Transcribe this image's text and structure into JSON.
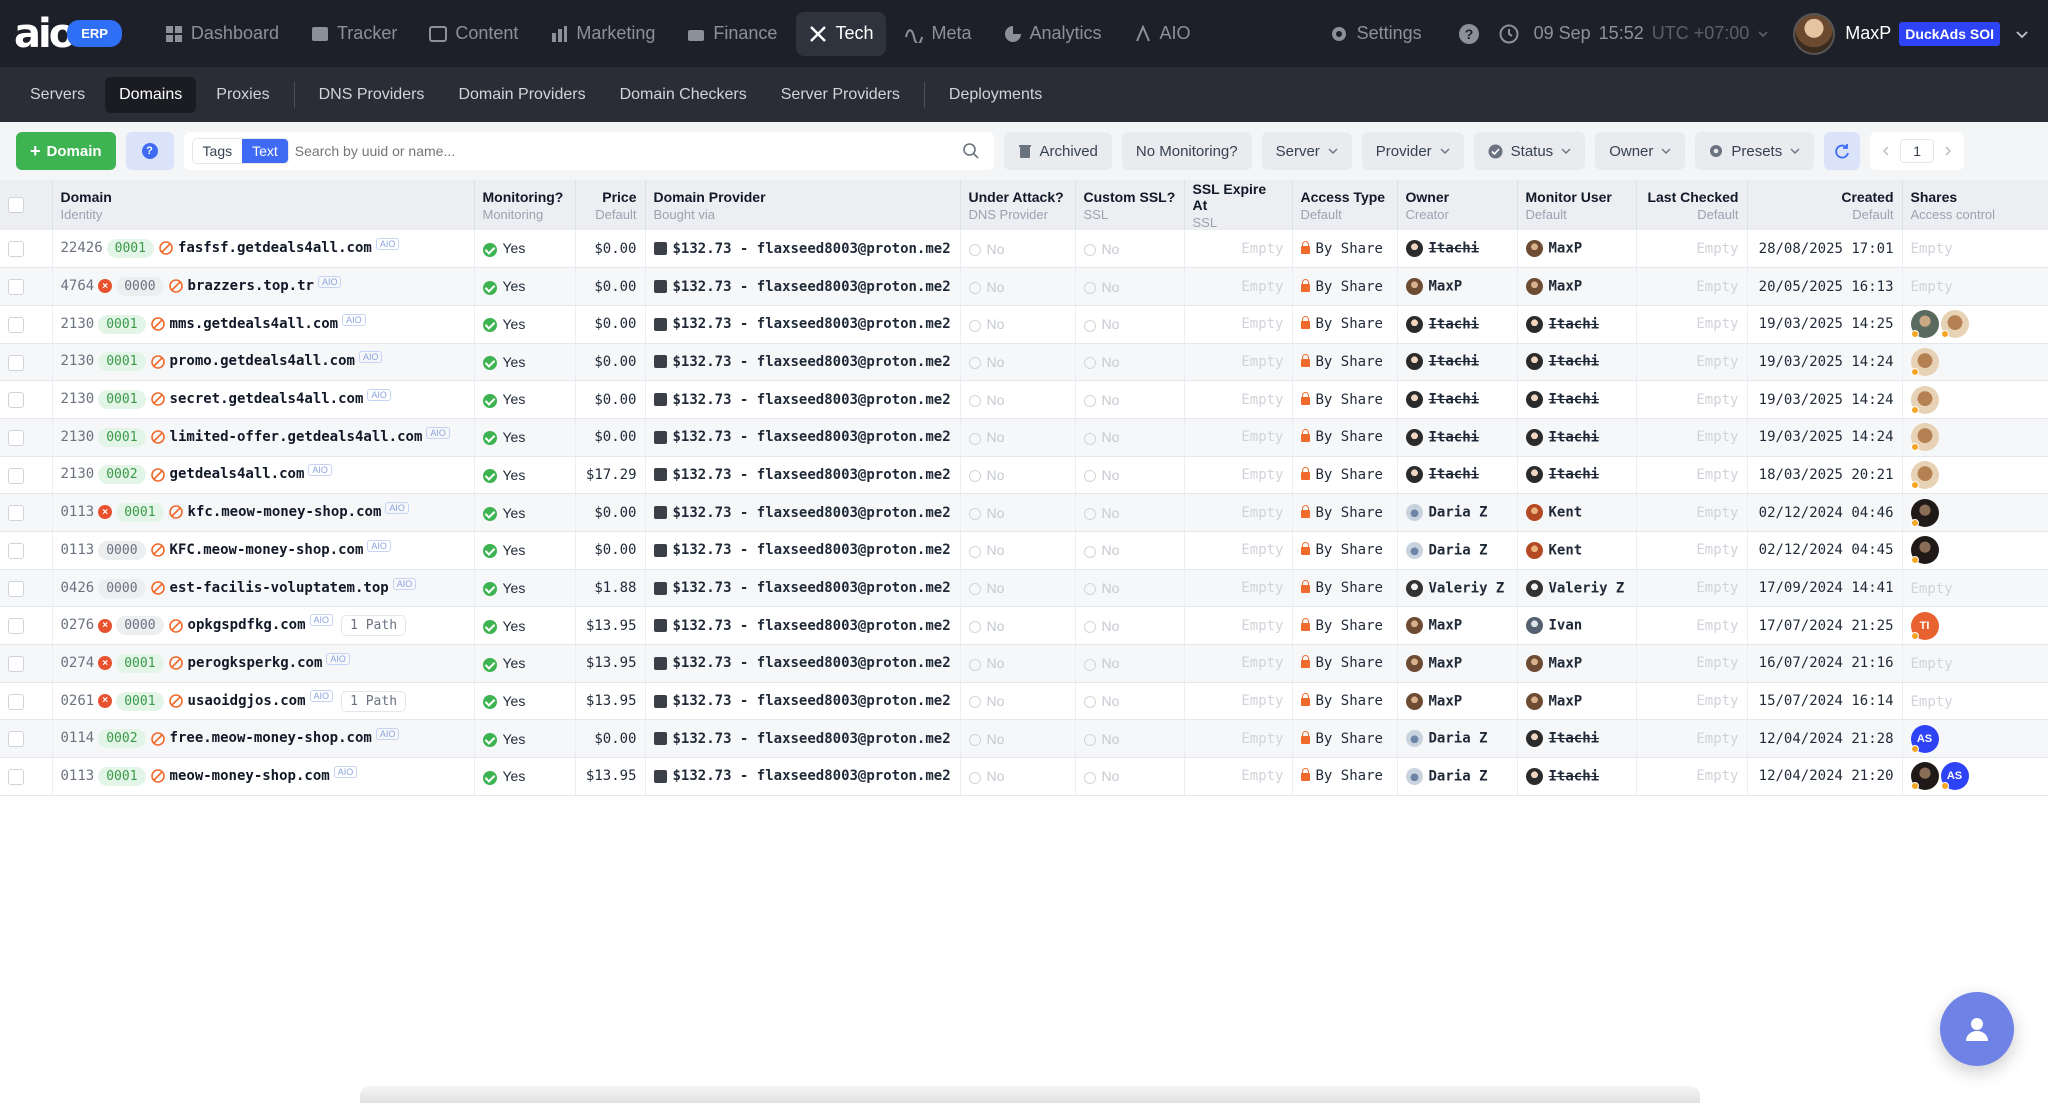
{
  "app": {
    "logo": "aio",
    "badge": "ERP"
  },
  "nav": [
    {
      "label": "Dashboard",
      "icon": "dashboard-icon",
      "active": false
    },
    {
      "label": "Tracker",
      "icon": "tracker-icon",
      "active": false
    },
    {
      "label": "Content",
      "icon": "content-icon",
      "active": false
    },
    {
      "label": "Marketing",
      "icon": "marketing-icon",
      "active": false
    },
    {
      "label": "Finance",
      "icon": "finance-icon",
      "active": false
    },
    {
      "label": "Tech",
      "icon": "tech-icon",
      "active": true
    },
    {
      "label": "Meta",
      "icon": "meta-icon",
      "active": false
    },
    {
      "label": "Analytics",
      "icon": "analytics-icon",
      "active": false
    },
    {
      "label": "AIO",
      "icon": "aio-icon",
      "active": false
    }
  ],
  "topright": {
    "settings": "Settings",
    "date": "09 Sep",
    "time": "15:52",
    "tz": "UTC +07:00",
    "user": "MaxP",
    "workspace": "DuckAds SOI"
  },
  "subnav": [
    {
      "label": "Servers",
      "active": false
    },
    {
      "label": "Domains",
      "active": true
    },
    {
      "label": "Proxies",
      "active": false
    },
    {
      "label": "DNS Providers",
      "active": false
    },
    {
      "label": "Domain Providers",
      "active": false
    },
    {
      "label": "Domain Checkers",
      "active": false
    },
    {
      "label": "Server Providers",
      "active": false
    },
    {
      "label": "Deployments",
      "active": false
    }
  ],
  "toolbar": {
    "add_label": "Domain",
    "tags_label": "Tags",
    "text_label": "Text",
    "search_placeholder": "Search by uuid or name...",
    "archived": "Archived",
    "no_monitoring": "No Monitoring?",
    "server": "Server",
    "provider": "Provider",
    "status": "Status",
    "owner": "Owner",
    "presets": "Presets",
    "page": "1"
  },
  "columns": [
    {
      "title": "Domain",
      "sub": "Identity"
    },
    {
      "title": "Monitoring?",
      "sub": "Monitoring"
    },
    {
      "title": "Price",
      "sub": "Default"
    },
    {
      "title": "Domain Provider",
      "sub": "Bought via"
    },
    {
      "title": "Under Attack?",
      "sub": "DNS Provider"
    },
    {
      "title": "Custom SSL?",
      "sub": "SSL"
    },
    {
      "title": "SSL Expire At",
      "sub": "SSL"
    },
    {
      "title": "Access Type",
      "sub": "Default"
    },
    {
      "title": "Owner",
      "sub": "Creator"
    },
    {
      "title": "Monitor User",
      "sub": "Default"
    },
    {
      "title": "Last Checked",
      "sub": "Default"
    },
    {
      "title": "Created",
      "sub": "Default"
    },
    {
      "title": "Shares",
      "sub": "Access control"
    }
  ],
  "rows": [
    {
      "id": "22426",
      "err": false,
      "code": "0001",
      "code_color": "green",
      "domain": "fasfsf.getdeals4all.com",
      "tag": "AIO",
      "path": "",
      "monitoring": "Yes",
      "price": "$0.00",
      "provider": "$132.73 - flaxseed8003@proton.me2",
      "attack": "No",
      "ssl": "No",
      "ssl_exp": "Empty",
      "access": "By Share",
      "owner": "Itachi",
      "owner_strike": true,
      "owner_av": "itachi",
      "monitor": "MaxP",
      "monitor_strike": false,
      "monitor_av": "maxp",
      "last": "Empty",
      "created": "28/08/2025 17:01",
      "shares": [],
      "shares_empty": "Empty"
    },
    {
      "id": "4764",
      "err": true,
      "code": "0000",
      "code_color": "grey",
      "domain": "brazzers.top.tr",
      "tag": "AIO",
      "path": "",
      "monitoring": "Yes",
      "price": "$0.00",
      "provider": "$132.73 - flaxseed8003@proton.me2",
      "attack": "No",
      "ssl": "No",
      "ssl_exp": "Empty",
      "access": "By Share",
      "owner": "MaxP",
      "owner_strike": false,
      "owner_av": "maxp",
      "monitor": "MaxP",
      "monitor_strike": false,
      "monitor_av": "maxp",
      "last": "Empty",
      "created": "20/05/2025 16:13",
      "shares": [],
      "shares_empty": "Empty"
    },
    {
      "id": "2130",
      "err": false,
      "code": "0001",
      "code_color": "green",
      "domain": "mms.getdeals4all.com",
      "tag": "AIO",
      "path": "",
      "monitoring": "Yes",
      "price": "$0.00",
      "provider": "$132.73 - flaxseed8003@proton.me2",
      "attack": "No",
      "ssl": "No",
      "ssl_exp": "Empty",
      "access": "By Share",
      "owner": "Itachi",
      "owner_strike": true,
      "owner_av": "itachi",
      "monitor": "Itachi",
      "monitor_strike": true,
      "monitor_av": "itachi",
      "last": "Empty",
      "created": "19/03/2025 14:25",
      "shares": [
        {
          "av": "grey",
          "t": ""
        },
        {
          "av": "cat",
          "t": ""
        }
      ],
      "shares_empty": ""
    },
    {
      "id": "2130",
      "err": false,
      "code": "0001",
      "code_color": "green",
      "domain": "promo.getdeals4all.com",
      "tag": "AIO",
      "path": "",
      "monitoring": "Yes",
      "price": "$0.00",
      "provider": "$132.73 - flaxseed8003@proton.me2",
      "attack": "No",
      "ssl": "No",
      "ssl_exp": "Empty",
      "access": "By Share",
      "owner": "Itachi",
      "owner_strike": true,
      "owner_av": "itachi",
      "monitor": "Itachi",
      "monitor_strike": true,
      "monitor_av": "itachi",
      "last": "Empty",
      "created": "19/03/2025 14:24",
      "shares": [
        {
          "av": "cat",
          "t": ""
        }
      ],
      "shares_empty": ""
    },
    {
      "id": "2130",
      "err": false,
      "code": "0001",
      "code_color": "green",
      "domain": "secret.getdeals4all.com",
      "tag": "AIO",
      "path": "",
      "monitoring": "Yes",
      "price": "$0.00",
      "provider": "$132.73 - flaxseed8003@proton.me2",
      "attack": "No",
      "ssl": "No",
      "ssl_exp": "Empty",
      "access": "By Share",
      "owner": "Itachi",
      "owner_strike": true,
      "owner_av": "itachi",
      "monitor": "Itachi",
      "monitor_strike": true,
      "monitor_av": "itachi",
      "last": "Empty",
      "created": "19/03/2025 14:24",
      "shares": [
        {
          "av": "cat",
          "t": ""
        }
      ],
      "shares_empty": ""
    },
    {
      "id": "2130",
      "err": false,
      "code": "0001",
      "code_color": "green",
      "domain": "limited-offer.getdeals4all.com",
      "tag": "AIO",
      "path": "",
      "monitoring": "Yes",
      "price": "$0.00",
      "provider": "$132.73 - flaxseed8003@proton.me2",
      "attack": "No",
      "ssl": "No",
      "ssl_exp": "Empty",
      "access": "By Share",
      "owner": "Itachi",
      "owner_strike": true,
      "owner_av": "itachi",
      "monitor": "Itachi",
      "monitor_strike": true,
      "monitor_av": "itachi",
      "last": "Empty",
      "created": "19/03/2025 14:24",
      "shares": [
        {
          "av": "cat",
          "t": ""
        }
      ],
      "shares_empty": ""
    },
    {
      "id": "2130",
      "err": false,
      "code": "0002",
      "code_color": "green",
      "domain": "getdeals4all.com",
      "tag": "AIO",
      "path": "",
      "monitoring": "Yes",
      "price": "$17.29",
      "provider": "$132.73 - flaxseed8003@proton.me2",
      "attack": "No",
      "ssl": "No",
      "ssl_exp": "Empty",
      "access": "By Share",
      "owner": "Itachi",
      "owner_strike": true,
      "owner_av": "itachi",
      "monitor": "Itachi",
      "monitor_strike": true,
      "monitor_av": "itachi",
      "last": "Empty",
      "created": "18/03/2025 20:21",
      "shares": [
        {
          "av": "cat",
          "t": ""
        }
      ],
      "shares_empty": ""
    },
    {
      "id": "0113",
      "err": true,
      "code": "0001",
      "code_color": "green",
      "domain": "kfc.meow-money-shop.com",
      "tag": "AIO",
      "path": "",
      "monitoring": "Yes",
      "price": "$0.00",
      "provider": "$132.73 - flaxseed8003@proton.me2",
      "attack": "No",
      "ssl": "No",
      "ssl_exp": "Empty",
      "access": "By Share",
      "owner": "Daria Z",
      "owner_strike": false,
      "owner_av": "daria",
      "monitor": "Kent",
      "monitor_strike": false,
      "monitor_av": "kent",
      "last": "Empty",
      "created": "02/12/2024 04:46",
      "shares": [
        {
          "av": "dark",
          "t": ""
        }
      ],
      "shares_empty": ""
    },
    {
      "id": "0113",
      "err": false,
      "code": "0000",
      "code_color": "grey",
      "domain": "KFC.meow-money-shop.com",
      "tag": "AIO",
      "path": "",
      "monitoring": "Yes",
      "price": "$0.00",
      "provider": "$132.73 - flaxseed8003@proton.me2",
      "attack": "No",
      "ssl": "No",
      "ssl_exp": "Empty",
      "access": "By Share",
      "owner": "Daria Z",
      "owner_strike": false,
      "owner_av": "daria",
      "monitor": "Kent",
      "monitor_strike": false,
      "monitor_av": "kent",
      "last": "Empty",
      "created": "02/12/2024 04:45",
      "shares": [
        {
          "av": "dark",
          "t": ""
        }
      ],
      "shares_empty": ""
    },
    {
      "id": "0426",
      "err": false,
      "code": "0000",
      "code_color": "grey",
      "domain": "est-facilis-voluptatem.top",
      "tag": "AIO",
      "path": "",
      "monitoring": "Yes",
      "price": "$1.88",
      "provider": "$132.73 - flaxseed8003@proton.me2",
      "attack": "No",
      "ssl": "No",
      "ssl_exp": "Empty",
      "access": "By Share",
      "owner": "Valeriy Z",
      "owner_strike": false,
      "owner_av": "valeriy",
      "monitor": "Valeriy Z",
      "monitor_strike": false,
      "monitor_av": "valeriy",
      "last": "Empty",
      "created": "17/09/2024 14:41",
      "shares": [],
      "shares_empty": "Empty"
    },
    {
      "id": "0276",
      "err": true,
      "code": "0000",
      "code_color": "grey",
      "domain": "opkgspdfkg.com",
      "tag": "AIO",
      "path": "1 Path",
      "monitoring": "Yes",
      "price": "$13.95",
      "provider": "$132.73 - flaxseed8003@proton.me2",
      "attack": "No",
      "ssl": "No",
      "ssl_exp": "Empty",
      "access": "By Share",
      "owner": "MaxP",
      "owner_strike": false,
      "owner_av": "maxp",
      "monitor": "Ivan",
      "monitor_strike": false,
      "monitor_av": "ivan",
      "last": "Empty",
      "created": "17/07/2024 21:25",
      "shares": [
        {
          "av": "ti",
          "t": "TI"
        }
      ],
      "shares_empty": ""
    },
    {
      "id": "0274",
      "err": true,
      "code": "0001",
      "code_color": "green",
      "domain": "perogksperkg.com",
      "tag": "AIO",
      "path": "",
      "monitoring": "Yes",
      "price": "$13.95",
      "provider": "$132.73 - flaxseed8003@proton.me2",
      "attack": "No",
      "ssl": "No",
      "ssl_exp": "Empty",
      "access": "By Share",
      "owner": "MaxP",
      "owner_strike": false,
      "owner_av": "maxp",
      "monitor": "MaxP",
      "monitor_strike": false,
      "monitor_av": "maxp",
      "last": "Empty",
      "created": "16/07/2024 21:16",
      "shares": [],
      "shares_empty": "Empty"
    },
    {
      "id": "0261",
      "err": true,
      "code": "0001",
      "code_color": "green",
      "domain": "usaoidgjos.com",
      "tag": "AIO",
      "path": "1 Path",
      "monitoring": "Yes",
      "price": "$13.95",
      "provider": "$132.73 - flaxseed8003@proton.me2",
      "attack": "No",
      "ssl": "No",
      "ssl_exp": "Empty",
      "access": "By Share",
      "owner": "MaxP",
      "owner_strike": false,
      "owner_av": "maxp",
      "monitor": "MaxP",
      "monitor_strike": false,
      "monitor_av": "maxp",
      "last": "Empty",
      "created": "15/07/2024 16:14",
      "shares": [],
      "shares_empty": "Empty"
    },
    {
      "id": "0114",
      "err": false,
      "code": "0002",
      "code_color": "green",
      "domain": "free.meow-money-shop.com",
      "tag": "AIO",
      "path": "",
      "monitoring": "Yes",
      "price": "$0.00",
      "provider": "$132.73 - flaxseed8003@proton.me2",
      "attack": "No",
      "ssl": "No",
      "ssl_exp": "Empty",
      "access": "By Share",
      "owner": "Daria Z",
      "owner_strike": false,
      "owner_av": "daria",
      "monitor": "Itachi",
      "monitor_strike": true,
      "monitor_av": "itachi",
      "last": "Empty",
      "created": "12/04/2024 21:28",
      "shares": [
        {
          "av": "as",
          "t": "AS"
        }
      ],
      "shares_empty": ""
    },
    {
      "id": "0113",
      "err": false,
      "code": "0001",
      "code_color": "green",
      "domain": "meow-money-shop.com",
      "tag": "AIO",
      "path": "",
      "monitoring": "Yes",
      "price": "$13.95",
      "provider": "$132.73 - flaxseed8003@proton.me2",
      "attack": "No",
      "ssl": "No",
      "ssl_exp": "Empty",
      "access": "By Share",
      "owner": "Daria Z",
      "owner_strike": false,
      "owner_av": "daria",
      "monitor": "Itachi",
      "monitor_strike": true,
      "monitor_av": "itachi",
      "last": "Empty",
      "created": "12/04/2024 21:20",
      "shares": [
        {
          "av": "dark",
          "t": ""
        },
        {
          "av": "as",
          "t": "AS"
        }
      ],
      "shares_empty": ""
    }
  ],
  "colors": {
    "accent": "#3f6bf4",
    "green": "#3db351",
    "danger": "#e8522f",
    "lock": "#f06a2c",
    "nav_bg": "#1d2028",
    "subnav_bg": "#2a2d35"
  }
}
